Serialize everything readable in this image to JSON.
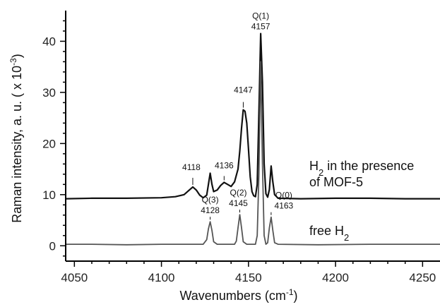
{
  "chart_data": {
    "type": "line",
    "xlabel": "Wavenumbers (cm",
    "xlabel_sup": "-1",
    "xlabel_end": ")",
    "ylabel": "Raman intensity, a. u. ( x 10",
    "ylabel_sup": "-3",
    "ylabel_end": ")",
    "xlim": [
      4045,
      4260
    ],
    "ylim": [
      -3,
      46
    ],
    "x_ticks": [
      4050,
      4100,
      4150,
      4200,
      4250
    ],
    "y_ticks": [
      0,
      10,
      20,
      30,
      40
    ],
    "series": [
      {
        "key": "mof",
        "color": "#111111",
        "points": [
          [
            4045,
            9.2
          ],
          [
            4060,
            9.3
          ],
          [
            4080,
            9.3
          ],
          [
            4100,
            9.4
          ],
          [
            4108,
            9.6
          ],
          [
            4113,
            10.0
          ],
          [
            4116,
            10.9
          ],
          [
            4118,
            11.5
          ],
          [
            4120,
            10.9
          ],
          [
            4122,
            9.9
          ],
          [
            4124,
            9.4
          ],
          [
            4126,
            9.9
          ],
          [
            4127,
            12.0
          ],
          [
            4128,
            14.2
          ],
          [
            4129,
            12.0
          ],
          [
            4130,
            10.6
          ],
          [
            4132,
            10.9
          ],
          [
            4134,
            11.8
          ],
          [
            4136,
            12.4
          ],
          [
            4138,
            12.0
          ],
          [
            4140,
            11.6
          ],
          [
            4142,
            12.5
          ],
          [
            4144,
            15.0
          ],
          [
            4145,
            18.5
          ],
          [
            4146,
            23.0
          ],
          [
            4147,
            26.6
          ],
          [
            4148,
            26.3
          ],
          [
            4149,
            24.0
          ],
          [
            4150,
            19.0
          ],
          [
            4151,
            13.5
          ],
          [
            4152,
            10.6
          ],
          [
            4153,
            9.8
          ],
          [
            4154,
            9.6
          ],
          [
            4155,
            12.0
          ],
          [
            4156,
            26.0
          ],
          [
            4157,
            41.5
          ],
          [
            4158,
            32.0
          ],
          [
            4159,
            16.0
          ],
          [
            4160,
            10.2
          ],
          [
            4161,
            9.5
          ],
          [
            4162,
            11.0
          ],
          [
            4163,
            15.6
          ],
          [
            4164,
            12.5
          ],
          [
            4165,
            10.0
          ],
          [
            4167,
            9.3
          ],
          [
            4180,
            9.2
          ],
          [
            4200,
            9.3
          ],
          [
            4220,
            9.3
          ],
          [
            4240,
            9.2
          ],
          [
            4260,
            9.2
          ]
        ]
      },
      {
        "key": "free",
        "color": "#555555",
        "points": [
          [
            4045,
            0.3
          ],
          [
            4060,
            0.3
          ],
          [
            4080,
            0.2
          ],
          [
            4100,
            0.3
          ],
          [
            4115,
            0.3
          ],
          [
            4124,
            0.3
          ],
          [
            4126,
            1.2
          ],
          [
            4127,
            3.3
          ],
          [
            4128,
            4.7
          ],
          [
            4129,
            3.0
          ],
          [
            4130,
            0.8
          ],
          [
            4132,
            0.3
          ],
          [
            4142,
            0.3
          ],
          [
            4143,
            0.9
          ],
          [
            4144,
            3.5
          ],
          [
            4145,
            6.1
          ],
          [
            4146,
            3.5
          ],
          [
            4147,
            0.8
          ],
          [
            4149,
            0.3
          ],
          [
            4154,
            0.3
          ],
          [
            4155,
            2.0
          ],
          [
            4156,
            14.0
          ],
          [
            4157,
            36.0
          ],
          [
            4158,
            16.0
          ],
          [
            4159,
            2.0
          ],
          [
            4160,
            0.3
          ],
          [
            4161,
            0.6
          ],
          [
            4162,
            3.5
          ],
          [
            4163,
            5.6
          ],
          [
            4164,
            3.0
          ],
          [
            4165,
            0.6
          ],
          [
            4167,
            0.3
          ],
          [
            4190,
            0.2
          ],
          [
            4220,
            0.3
          ],
          [
            4260,
            0.3
          ]
        ]
      }
    ],
    "peak_labels": [
      {
        "key": "p4118",
        "line1": "4118",
        "x": 4118,
        "y": 11.5
      },
      {
        "key": "p4136",
        "line1": "4136",
        "x": 4136,
        "y": 12.4
      },
      {
        "key": "p4147",
        "line1": "4147",
        "x": 4147,
        "y": 26.6
      },
      {
        "key": "p4157",
        "line0": "Q(1)",
        "line1": "4157",
        "x": 4157,
        "y": 41.5
      },
      {
        "key": "p4128",
        "line0": "Q(3)",
        "line1": "4128",
        "x": 4128,
        "y": 4.7
      },
      {
        "key": "p4145",
        "line0": "Q(2)",
        "line1": "4145",
        "x": 4145,
        "y": 6.1
      },
      {
        "key": "p4163",
        "line0": "Q(0)",
        "line1": "4163",
        "x": 4163,
        "y": 5.6
      }
    ],
    "annotations": {
      "mof_line1": "H",
      "mof_line1_sub": "2",
      "mof_line1_rest": " in the presence",
      "mof_line2": "of MOF-5",
      "free_main": "free H",
      "free_sub": "2"
    }
  }
}
